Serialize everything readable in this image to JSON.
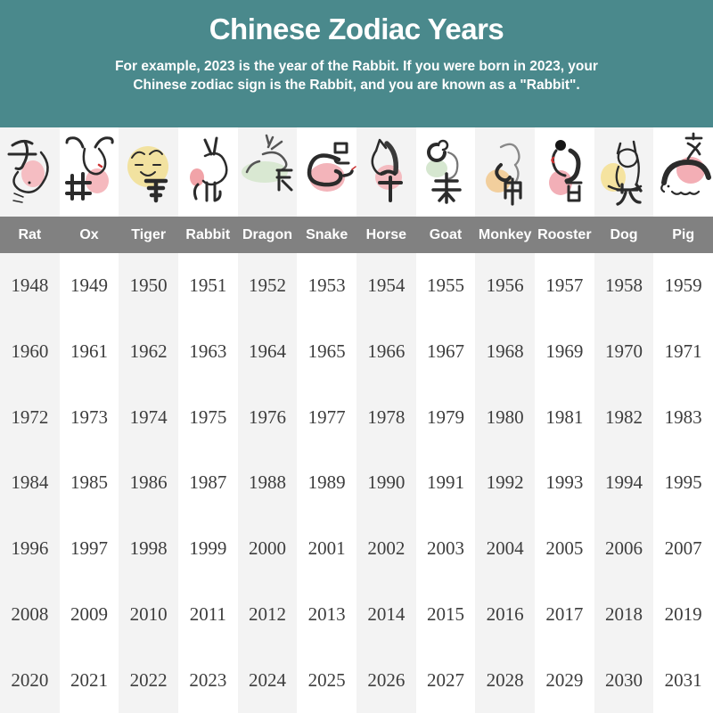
{
  "header": {
    "title": "Chinese Zodiac Years",
    "subtitle": "For example, 2023 is the year of the Rabbit. If you were born in 2023, your Chinese zodiac sign is the Rabbit, and you are known as a \"Rabbit\".",
    "bg_color": "#4a898c",
    "text_color": "#ffffff"
  },
  "chart_data": {
    "type": "table",
    "title": "Chinese Zodiac Years",
    "columns": [
      "Rat",
      "Ox",
      "Tiger",
      "Rabbit",
      "Dragon",
      "Snake",
      "Horse",
      "Goat",
      "Monkey",
      "Rooster",
      "Dog",
      "Pig"
    ],
    "column_characters": [
      "子",
      "丑",
      "寅",
      "卯",
      "辰",
      "巳",
      "午",
      "未",
      "申",
      "酉",
      "戌",
      "亥"
    ],
    "column_blob_colors": [
      "#f5bdc2",
      "#f5b9be",
      "#f2e2a0",
      "#f1a3a8",
      "#d9e8d2",
      "#f3b4ba",
      "#f4bbc0",
      "#d6e7d0",
      "#f2cf9d",
      "#f2afb7",
      "#f5e3a0",
      "#f3aeb5"
    ],
    "rows": [
      [
        1948,
        1949,
        1950,
        1951,
        1952,
        1953,
        1954,
        1955,
        1956,
        1957,
        1958,
        1959
      ],
      [
        1960,
        1961,
        1962,
        1963,
        1964,
        1965,
        1966,
        1967,
        1968,
        1969,
        1970,
        1971
      ],
      [
        1972,
        1973,
        1974,
        1975,
        1976,
        1977,
        1978,
        1979,
        1980,
        1981,
        1982,
        1983
      ],
      [
        1984,
        1985,
        1986,
        1987,
        1988,
        1989,
        1990,
        1991,
        1992,
        1993,
        1994,
        1995
      ],
      [
        1996,
        1997,
        1998,
        1999,
        2000,
        2001,
        2002,
        2003,
        2004,
        2005,
        2006,
        2007
      ],
      [
        2008,
        2009,
        2010,
        2011,
        2012,
        2013,
        2014,
        2015,
        2016,
        2017,
        2018,
        2019
      ],
      [
        2020,
        2021,
        2022,
        2023,
        2024,
        2025,
        2026,
        2027,
        2028,
        2029,
        2030,
        2031
      ]
    ],
    "layout": {
      "grid": "12 columns x 7 year rows",
      "column_stripes": [
        "#f3f3f3",
        "#ffffff"
      ],
      "name_band_bg": "#818181"
    }
  },
  "colors": {
    "header_bg": "#4a898c",
    "name_band_bg": "#818181",
    "stripe_gray": "#f3f3f3",
    "year_text": "#3d3d3d"
  }
}
